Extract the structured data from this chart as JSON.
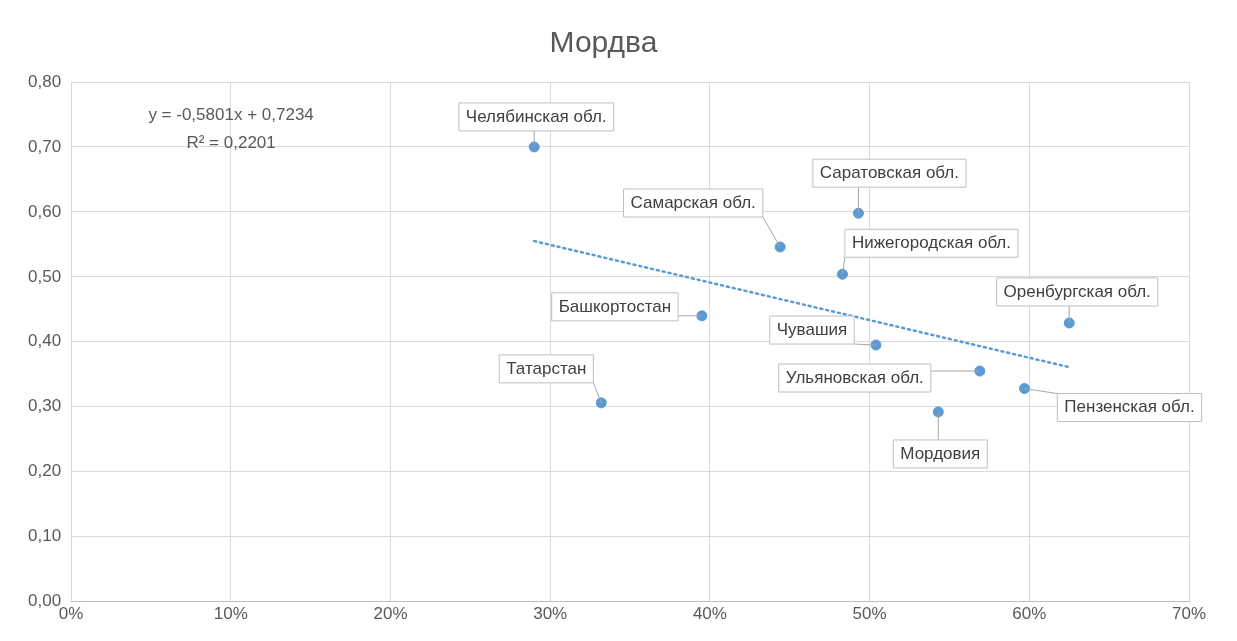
{
  "chart_data": {
    "type": "scatter",
    "title": "Мордва",
    "xlim": [
      0,
      70
    ],
    "ylim": [
      0,
      0.8
    ],
    "xticks": [
      {
        "value": 0,
        "label": "0%"
      },
      {
        "value": 10,
        "label": "10%"
      },
      {
        "value": 20,
        "label": "20%"
      },
      {
        "value": 30,
        "label": "30%"
      },
      {
        "value": 40,
        "label": "40%"
      },
      {
        "value": 50,
        "label": "50%"
      },
      {
        "value": 60,
        "label": "60%"
      },
      {
        "value": 70,
        "label": "70%"
      }
    ],
    "yticks": [
      {
        "value": 0,
        "label": "0,00"
      },
      {
        "value": 0.1,
        "label": "0,10"
      },
      {
        "value": 0.2,
        "label": "0,20"
      },
      {
        "value": 0.3,
        "label": "0,30"
      },
      {
        "value": 0.4,
        "label": "0,40"
      },
      {
        "value": 0.5,
        "label": "0,50"
      },
      {
        "value": 0.6,
        "label": "0,60"
      },
      {
        "value": 0.7,
        "label": "0,70"
      },
      {
        "value": 0.8,
        "label": "0,80"
      }
    ],
    "grid": true,
    "legend": false,
    "marker": "circle",
    "series": [
      {
        "color": "#5b9bd5",
        "x": [
          29,
          44.4,
          49.3,
          48.3,
          62.5,
          39.5,
          33.2,
          50.4,
          56.9,
          54.3,
          59.7
        ],
        "values": [
          0.7,
          0.546,
          0.598,
          0.504,
          0.429,
          0.44,
          0.306,
          0.395,
          0.355,
          0.292,
          0.328
        ]
      },
      {
        "type": "line",
        "color": "#5b9bd5",
        "line_style": "dotted",
        "marker": "none",
        "x": [
          29,
          62.5
        ],
        "values": [
          0.555,
          0.361
        ]
      }
    ],
    "annotations": [
      "y = -0,5801x + 0,7234",
      "R² = 0,2201",
      {
        "text": "Челябинская обл.",
        "x": 29,
        "y": 0.7
      },
      {
        "text": "Самарская обл.",
        "x": 44.4,
        "y": 0.546
      },
      {
        "text": "Саратовская обл.",
        "x": 49.3,
        "y": 0.598
      },
      {
        "text": "Нижегородская обл.",
        "x": 48.3,
        "y": 0.504
      },
      {
        "text": "Оренбургская обл.",
        "x": 62.5,
        "y": 0.429
      },
      {
        "text": "Башкортостан",
        "x": 39.5,
        "y": 0.44
      },
      {
        "text": "Татарстан",
        "x": 33.2,
        "y": 0.306
      },
      {
        "text": "Чувашия",
        "x": 50.4,
        "y": 0.395
      },
      {
        "text": "Ульяновская обл.",
        "x": 56.9,
        "y": 0.355
      },
      {
        "text": "Мордовия",
        "x": 54.3,
        "y": 0.292
      },
      {
        "text": "Пензенская обл.",
        "x": 59.7,
        "y": 0.328
      }
    ]
  }
}
